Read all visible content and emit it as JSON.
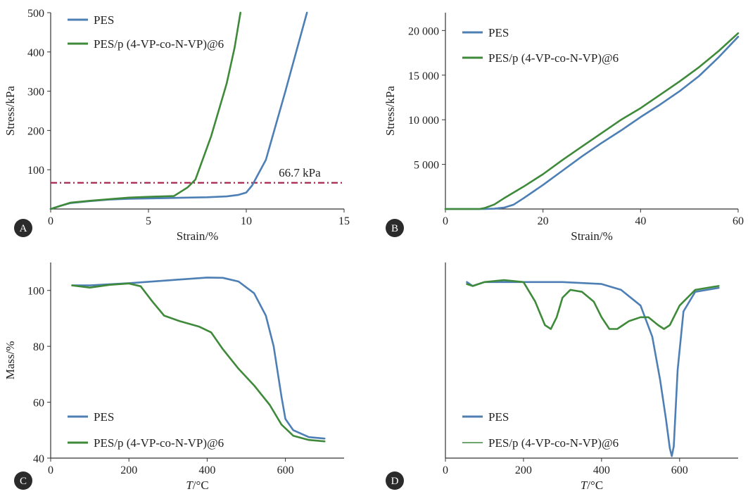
{
  "colors": {
    "pes": "#4d7fb5",
    "pes_p4vp": "#3f8a3a",
    "threshold": "#a8284f",
    "axis": "#333333",
    "badge": "#2b2b2b"
  },
  "chart_data": [
    {
      "panel": "A",
      "type": "line",
      "xlabel": "Strain/%",
      "ylabel": "Stress/kPa",
      "xlim": [
        0,
        15
      ],
      "ylim": [
        0,
        500
      ],
      "xticks": [
        "0",
        "5",
        "10",
        "15"
      ],
      "yticks": [
        "100",
        "200",
        "300",
        "400",
        "500"
      ],
      "legend_position": "top-left",
      "series": [
        {
          "name": "PES",
          "x": [
            0,
            0.5,
            1,
            2,
            3,
            4,
            5,
            6,
            7,
            8,
            9,
            9.6,
            10,
            10.3,
            11,
            12,
            13.1
          ],
          "y": [
            0,
            8,
            15,
            20,
            24,
            26,
            27,
            28,
            29,
            30,
            32,
            36,
            42,
            60,
            125,
            300,
            500
          ]
        },
        {
          "name": "PES/p (4-VP-co-N-VP)@6",
          "x": [
            0,
            0.5,
            1,
            2,
            3,
            4,
            5,
            6.3,
            7,
            7.4,
            8.2,
            9,
            9.4,
            9.7
          ],
          "y": [
            0,
            8,
            16,
            21,
            25,
            29,
            31,
            33,
            55,
            75,
            185,
            320,
            410,
            500
          ]
        }
      ],
      "reference_line": {
        "y": 66.7,
        "label": "66.7 kPa",
        "style": "dash-dot"
      }
    },
    {
      "panel": "B",
      "type": "line",
      "xlabel": "Strain/%",
      "ylabel": "Stress/kPa",
      "xlim": [
        0,
        60
      ],
      "ylim": [
        0,
        22000
      ],
      "xticks": [
        "0",
        "20",
        "40",
        "60"
      ],
      "yticks": [
        "5 000",
        "10 000",
        "15 000",
        "20 000"
      ],
      "legend_position": "top-left",
      "series": [
        {
          "name": "PES",
          "x": [
            0,
            8,
            10,
            12,
            14,
            16,
            20,
            24,
            28,
            32,
            36,
            40,
            44,
            48,
            52,
            56,
            60
          ],
          "y": [
            0,
            0,
            30,
            150,
            500,
            1200,
            2700,
            4300,
            5900,
            7400,
            8800,
            10300,
            11700,
            13200,
            14900,
            17000,
            19300
          ]
        },
        {
          "name": "PES/p (4-VP-co-N-VP)@6",
          "x": [
            0,
            7,
            8,
            10,
            12,
            16,
            20,
            24,
            28,
            32,
            36,
            40,
            44,
            48,
            52,
            56,
            60
          ],
          "y": [
            0,
            0,
            100,
            500,
            1200,
            2500,
            3900,
            5500,
            7000,
            8500,
            10000,
            11300,
            12800,
            14300,
            15900,
            17700,
            19700
          ]
        }
      ]
    },
    {
      "panel": "C",
      "type": "line",
      "xlabel": "T/°C",
      "xlabel_italic": "T",
      "xlabel_rest": "/°C",
      "ylabel": "Mass/%",
      "xlim": [
        0,
        750
      ],
      "ylim": [
        40,
        110
      ],
      "xticks": [
        "0",
        "200",
        "400",
        "600"
      ],
      "yticks": [
        "40",
        "60",
        "80",
        "100"
      ],
      "legend_position": "bottom-left",
      "series": [
        {
          "name": "PES",
          "x": [
            55,
            100,
            200,
            300,
            400,
            440,
            480,
            520,
            550,
            570,
            590,
            600,
            620,
            660,
            700
          ],
          "y": [
            101.8,
            101.8,
            102.6,
            103.6,
            104.6,
            104.5,
            103.2,
            99,
            91,
            80,
            62,
            54,
            50,
            47.5,
            47
          ]
        },
        {
          "name": "PES/p (4-VP-co-N-VP)@6",
          "x": [
            55,
            100,
            150,
            200,
            230,
            260,
            290,
            330,
            380,
            410,
            440,
            480,
            520,
            560,
            590,
            620,
            660,
            700
          ],
          "y": [
            101.8,
            101,
            102,
            102.5,
            101.5,
            96,
            91,
            89,
            87,
            85,
            79,
            72,
            66,
            59,
            52,
            48,
            46.5,
            46
          ]
        }
      ]
    },
    {
      "panel": "D",
      "type": "line",
      "xlabel": "T/°C",
      "xlabel_italic": "T",
      "xlabel_rest": "/°C",
      "ylabel": "",
      "xlim": [
        0,
        750
      ],
      "ylim": [
        0,
        1
      ],
      "xticks": [
        "0",
        "200",
        "400",
        "600"
      ],
      "yticks": [],
      "legend_position": "bottom-left",
      "series": [
        {
          "name": "PES",
          "x": [
            55,
            70,
            100,
            150,
            200,
            300,
            400,
            450,
            500,
            530,
            550,
            565,
            575,
            580,
            585,
            595,
            610,
            640,
            700
          ],
          "y": [
            0.9,
            0.88,
            0.9,
            0.9,
            0.9,
            0.9,
            0.89,
            0.86,
            0.78,
            0.62,
            0.4,
            0.2,
            0.05,
            0.01,
            0.06,
            0.45,
            0.75,
            0.85,
            0.87
          ]
        },
        {
          "name": "PES/p (4-VP-co-N-VP)@6",
          "x": [
            55,
            70,
            100,
            150,
            200,
            230,
            255,
            270,
            285,
            300,
            320,
            350,
            380,
            400,
            420,
            440,
            470,
            500,
            520,
            545,
            560,
            575,
            600,
            640,
            700
          ],
          "y": [
            0.89,
            0.88,
            0.9,
            0.91,
            0.9,
            0.8,
            0.68,
            0.66,
            0.72,
            0.82,
            0.86,
            0.85,
            0.8,
            0.72,
            0.66,
            0.66,
            0.7,
            0.72,
            0.72,
            0.68,
            0.66,
            0.68,
            0.78,
            0.86,
            0.88
          ]
        }
      ]
    }
  ]
}
